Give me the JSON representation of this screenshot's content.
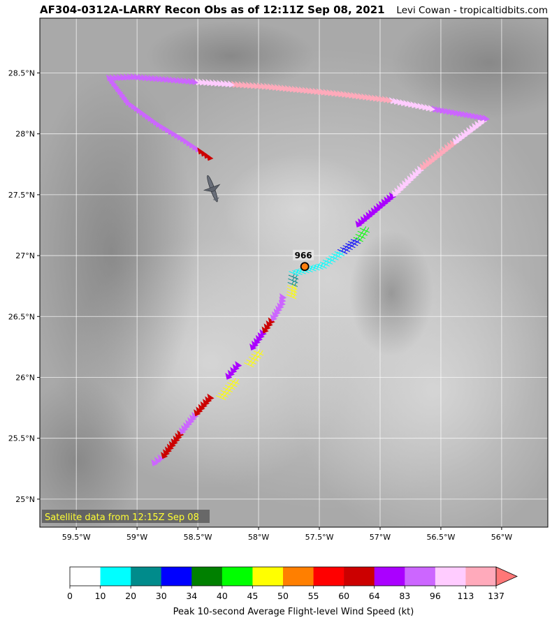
{
  "header": {
    "title": "AF304-0312A-LARRY Recon Obs as of 12:11Z Sep 08, 2021",
    "credit": "Levi Cowan - tropicaltidbits.com"
  },
  "map": {
    "lon_range": [
      -59.8,
      -55.62
    ],
    "lat_range": [
      24.77,
      28.95
    ],
    "lon_ticks": [
      {
        "value": -59.5,
        "label": "59.5°W"
      },
      {
        "value": -59.0,
        "label": "59°W"
      },
      {
        "value": -58.5,
        "label": "58.5°W"
      },
      {
        "value": -58.0,
        "label": "58°W"
      },
      {
        "value": -57.5,
        "label": "57.5°W"
      },
      {
        "value": -57.0,
        "label": "57°W"
      },
      {
        "value": -56.5,
        "label": "56.5°W"
      },
      {
        "value": -56.0,
        "label": "56°W"
      }
    ],
    "lat_ticks": [
      {
        "value": 25.0,
        "label": "25°N"
      },
      {
        "value": 25.5,
        "label": "25.5°N"
      },
      {
        "value": 26.0,
        "label": "26°N"
      },
      {
        "value": 26.5,
        "label": "26.5°N"
      },
      {
        "value": 27.0,
        "label": "27°N"
      },
      {
        "value": 27.5,
        "label": "27.5°N"
      },
      {
        "value": 28.0,
        "label": "28°N"
      },
      {
        "value": 28.5,
        "label": "28.5°N"
      }
    ],
    "grid": true,
    "satellite_note": "Satellite data from 12:15Z Sep 08",
    "center": {
      "lon": -57.62,
      "lat": 26.91,
      "pressure_label": "966"
    },
    "aircraft": {
      "lon": -58.38,
      "lat": 27.55
    },
    "flight_track": [
      {
        "lon": -58.83,
        "lat": 25.29,
        "speed": 83
      },
      {
        "lon": -58.75,
        "lat": 25.35,
        "speed": 60
      },
      {
        "lon": -58.6,
        "lat": 25.55,
        "speed": 83
      },
      {
        "lon": -58.48,
        "lat": 25.7,
        "speed": 60
      },
      {
        "lon": -58.35,
        "lat": 25.85,
        "speed": 45
      },
      {
        "lon": -58.22,
        "lat": 26.0,
        "speed": 64
      },
      {
        "lon": -58.12,
        "lat": 26.12,
        "speed": 45
      },
      {
        "lon": -58.02,
        "lat": 26.24,
        "speed": 64
      },
      {
        "lon": -57.92,
        "lat": 26.38,
        "speed": 60
      },
      {
        "lon": -57.85,
        "lat": 26.48,
        "speed": 83
      },
      {
        "lon": -57.78,
        "lat": 26.6,
        "speed": 83
      },
      {
        "lon": -57.77,
        "lat": 26.68,
        "speed": 45
      },
      {
        "lon": -57.76,
        "lat": 26.78,
        "speed": 20
      },
      {
        "lon": -57.75,
        "lat": 26.87,
        "speed": 10
      },
      {
        "lon": -57.52,
        "lat": 26.93,
        "speed": 10
      },
      {
        "lon": -57.35,
        "lat": 27.05,
        "speed": 30
      },
      {
        "lon": -57.22,
        "lat": 27.15,
        "speed": 40
      },
      {
        "lon": -57.15,
        "lat": 27.25,
        "speed": 64
      },
      {
        "lon": -56.85,
        "lat": 27.5,
        "speed": 96
      },
      {
        "lon": -56.62,
        "lat": 27.72,
        "speed": 113
      },
      {
        "lon": -56.35,
        "lat": 27.93,
        "speed": 96
      },
      {
        "lon": -56.1,
        "lat": 28.12,
        "speed": 83
      },
      {
        "lon": -56.55,
        "lat": 28.2,
        "speed": 96
      },
      {
        "lon": -56.9,
        "lat": 28.27,
        "speed": 113
      },
      {
        "lon": -57.3,
        "lat": 28.32,
        "speed": 113
      },
      {
        "lon": -57.9,
        "lat": 28.38,
        "speed": 113
      },
      {
        "lon": -58.2,
        "lat": 28.4,
        "speed": 96
      },
      {
        "lon": -58.5,
        "lat": 28.42,
        "speed": 83
      },
      {
        "lon": -59.0,
        "lat": 28.46,
        "speed": 83
      },
      {
        "lon": -59.2,
        "lat": 28.45,
        "speed": 83
      },
      {
        "lon": -59.05,
        "lat": 28.25,
        "speed": 83
      },
      {
        "lon": -58.8,
        "lat": 28.07,
        "speed": 83
      },
      {
        "lon": -58.6,
        "lat": 27.95,
        "speed": 83
      },
      {
        "lon": -58.45,
        "lat": 27.85,
        "speed": 60
      },
      {
        "lon": -58.35,
        "lat": 27.78,
        "speed": 60
      }
    ]
  },
  "colorbar": {
    "label": "Peak 10-second Average Flight-level Wind Speed (kt)",
    "ticks": [
      "0",
      "10",
      "20",
      "30",
      "34",
      "40",
      "45",
      "50",
      "55",
      "60",
      "64",
      "83",
      "96",
      "113",
      "137"
    ],
    "colors": [
      "#ffffff",
      "#00ffff",
      "#008b8b",
      "#0000ff",
      "#008000",
      "#00ff00",
      "#ffff00",
      "#ff7f00",
      "#ff0000",
      "#cc0000",
      "#aa00ff",
      "#cc66ff",
      "#ffccff",
      "#ffaabb"
    ],
    "extend_color": "#ff7777"
  }
}
